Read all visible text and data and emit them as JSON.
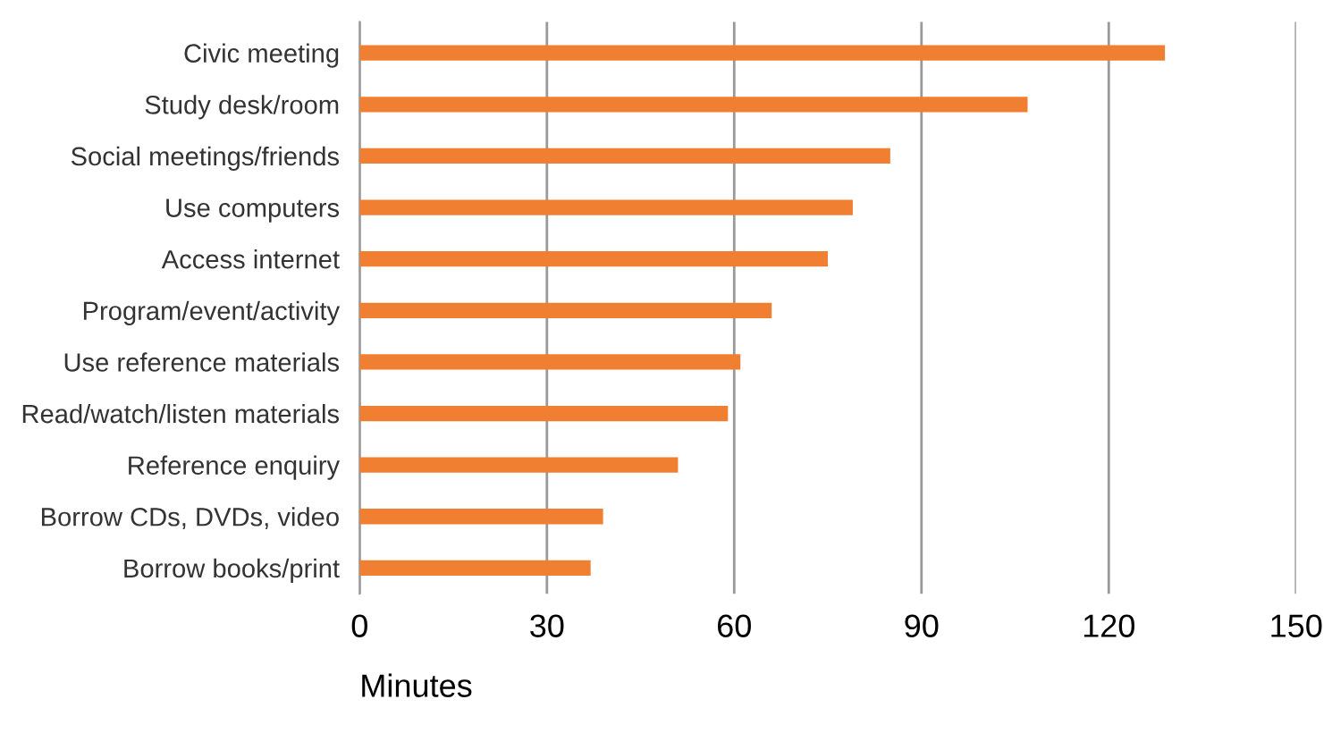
{
  "chart_data": {
    "type": "bar",
    "orientation": "horizontal",
    "xlabel": "Minutes",
    "categories": [
      "Civic meeting",
      "Study desk/room",
      "Social meetings/friends",
      "Use computers",
      "Access internet",
      "Program/event/activity",
      "Use reference materials",
      "Read/watch/listen materials",
      "Reference enquiry",
      "Borrow CDs, DVDs, video",
      "Borrow books/print"
    ],
    "values": [
      129,
      107,
      85,
      79,
      75,
      66,
      61,
      59,
      51,
      39,
      37
    ],
    "color": "#f07f32",
    "xlim": [
      0,
      150
    ],
    "xticks": [
      0,
      30,
      60,
      90,
      120,
      150
    ],
    "grid": "x",
    "legend": false
  }
}
